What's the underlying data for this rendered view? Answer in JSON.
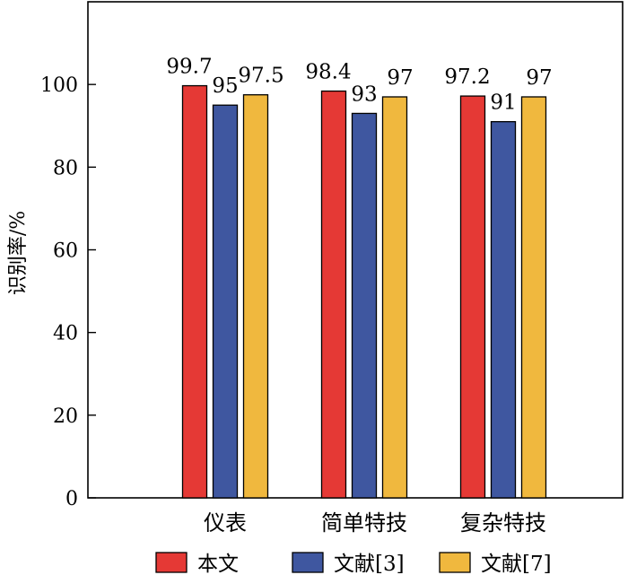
{
  "chart_data": {
    "type": "bar",
    "title": "",
    "xlabel": "",
    "ylabel": "识别率/%",
    "ylim": [
      0,
      120
    ],
    "yticks": [
      0,
      20,
      40,
      60,
      80,
      100
    ],
    "grid": false,
    "legend_position": "bottom",
    "categories": [
      "仪表",
      "简单特技",
      "复杂特技"
    ],
    "series": [
      {
        "name": "本文",
        "color": "#e53935",
        "values": [
          99.7,
          98.4,
          97.2
        ],
        "labels": [
          "99.7",
          "98.4",
          "97.2"
        ]
      },
      {
        "name": "文献[3]",
        "color": "#3f57a0",
        "values": [
          95,
          93,
          91
        ],
        "labels": [
          "95",
          "93",
          "91"
        ]
      },
      {
        "name": "文献[7]",
        "color": "#f0b83e",
        "values": [
          97.5,
          97,
          97
        ],
        "labels": [
          "97.5",
          "97",
          "97"
        ]
      }
    ]
  }
}
